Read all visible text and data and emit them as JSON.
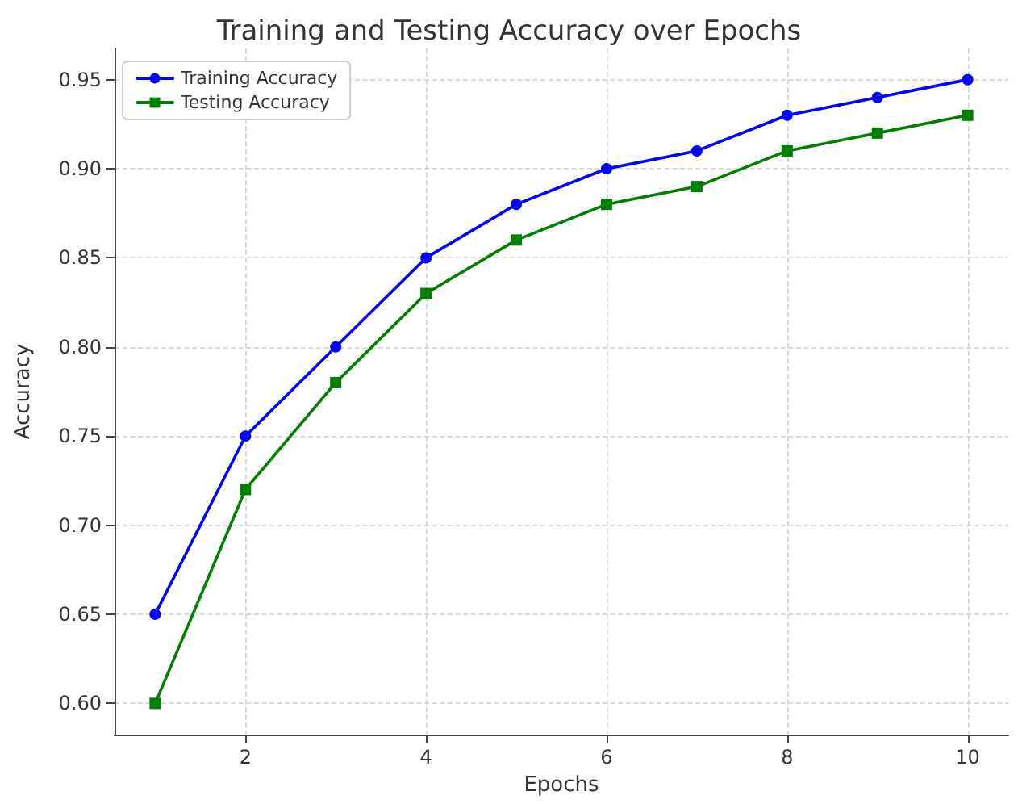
{
  "chart_data": {
    "type": "line",
    "title": "Training and Testing Accuracy over Epochs",
    "xlabel": "Epochs",
    "ylabel": "Accuracy",
    "x": [
      1,
      2,
      3,
      4,
      5,
      6,
      7,
      8,
      9,
      10
    ],
    "series": [
      {
        "name": "Training Accuracy",
        "color": "#0000ff",
        "marker": "circle",
        "values": [
          0.65,
          0.75,
          0.8,
          0.85,
          0.88,
          0.9,
          0.91,
          0.93,
          0.94,
          0.95
        ]
      },
      {
        "name": "Testing Accuracy",
        "color": "#008000",
        "marker": "square",
        "values": [
          0.6,
          0.72,
          0.78,
          0.83,
          0.86,
          0.88,
          0.89,
          0.91,
          0.92,
          0.93
        ]
      }
    ],
    "xlim": [
      0.55,
      10.45
    ],
    "xticks": [
      2,
      4,
      6,
      8,
      10
    ],
    "ylim": [
      0.5825,
      0.9675
    ],
    "yticks": [
      {
        "value": 0.6,
        "label": "0.60"
      },
      0.65,
      {
        "value": 0.7,
        "label": "0.70"
      },
      0.75,
      {
        "value": 0.8,
        "label": "0.80"
      },
      0.85,
      {
        "value": 0.9,
        "label": "0.90"
      },
      0.95
    ],
    "grid": true,
    "legend": "top left",
    "line_style": "solid"
  }
}
